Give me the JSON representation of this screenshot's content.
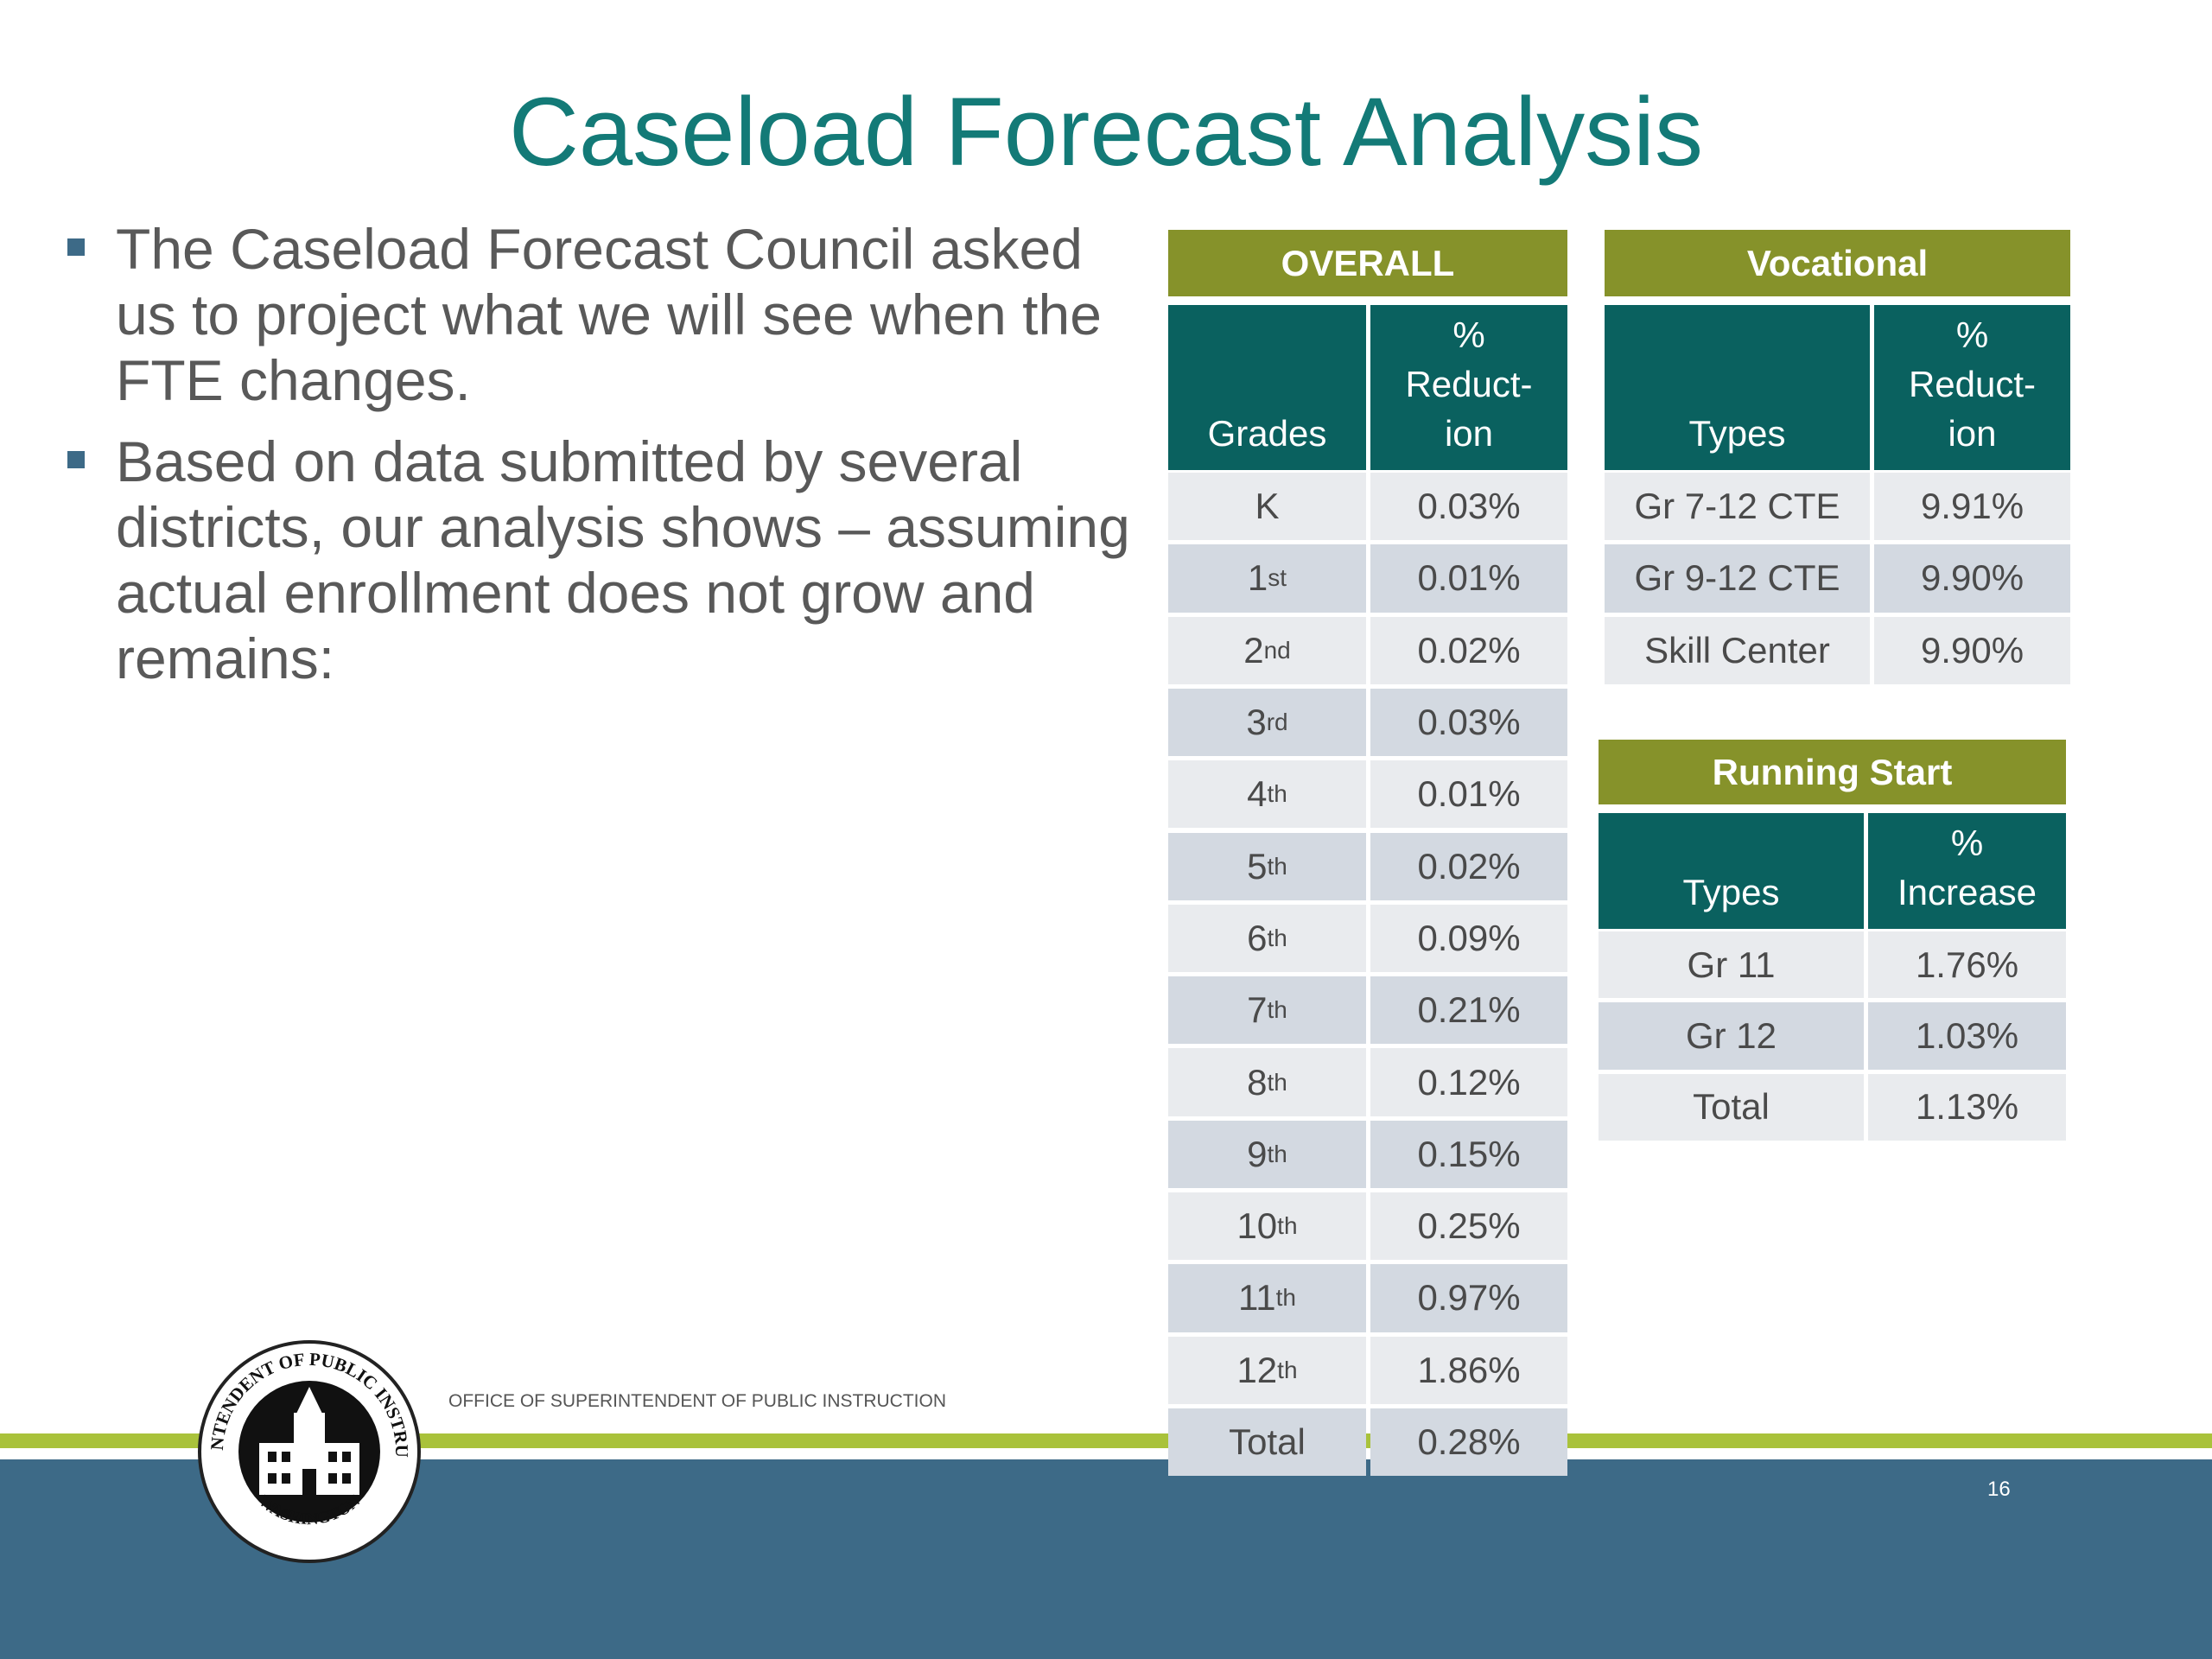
{
  "title": "Caseload Forecast Analysis",
  "bullets": [
    "The Caseload Forecast Council asked us to project what we will see when the FTE changes.",
    "Based on data submitted by several districts, our analysis shows – assuming actual enrollment does not grow and remains:"
  ],
  "tables": {
    "overall": {
      "title": "OVERALL",
      "columns": [
        "Grades",
        "%\nReduct-\nion"
      ],
      "rows": [
        {
          "label": "K",
          "value": "0.03%"
        },
        {
          "label": "1",
          "sup": "st",
          "value": "0.01%"
        },
        {
          "label": "2",
          "sup": "nd",
          "value": "0.02%"
        },
        {
          "label": "3",
          "sup": "rd",
          "value": "0.03%"
        },
        {
          "label": "4",
          "sup": "th",
          "value": "0.01%"
        },
        {
          "label": "5",
          "sup": "th",
          "value": "0.02%"
        },
        {
          "label": "6",
          "sup": "th",
          "value": "0.09%"
        },
        {
          "label": "7",
          "sup": "th",
          "value": "0.21%"
        },
        {
          "label": "8",
          "sup": "th",
          "value": "0.12%"
        },
        {
          "label": "9",
          "sup": "th",
          "value": "0.15%"
        },
        {
          "label": "10",
          "sup": "th",
          "value": "0.25%"
        },
        {
          "label": "11",
          "sup": "th",
          "value": "0.97%"
        },
        {
          "label": "12",
          "sup": "th",
          "value": "1.86%"
        },
        {
          "label": "Total",
          "value": "0.28%"
        }
      ]
    },
    "vocational": {
      "title": "Vocational",
      "columns": [
        "Types",
        "%\nReduct-\nion"
      ],
      "rows": [
        {
          "label": "Gr 7-12 CTE",
          "value": "9.91%"
        },
        {
          "label": "Gr 9-12 CTE",
          "value": "9.90%"
        },
        {
          "label": "Skill Center",
          "value": "9.90%"
        }
      ]
    },
    "running_start": {
      "title": "Running Start",
      "columns": [
        "Types",
        "%\nIncrease"
      ],
      "rows": [
        {
          "label": "Gr 11",
          "value": "1.76%"
        },
        {
          "label": "Gr 12",
          "value": "1.03%"
        },
        {
          "label": "Total",
          "value": "1.13%"
        }
      ]
    }
  },
  "footer": {
    "office": "OFFICE OF SUPERINTENDENT OF PUBLIC INSTRUCTION",
    "page": "16",
    "seal_top": "SUPERINTENDENT OF PUBLIC INSTRUCTION",
    "seal_bottom": "WASHINGTON"
  }
}
